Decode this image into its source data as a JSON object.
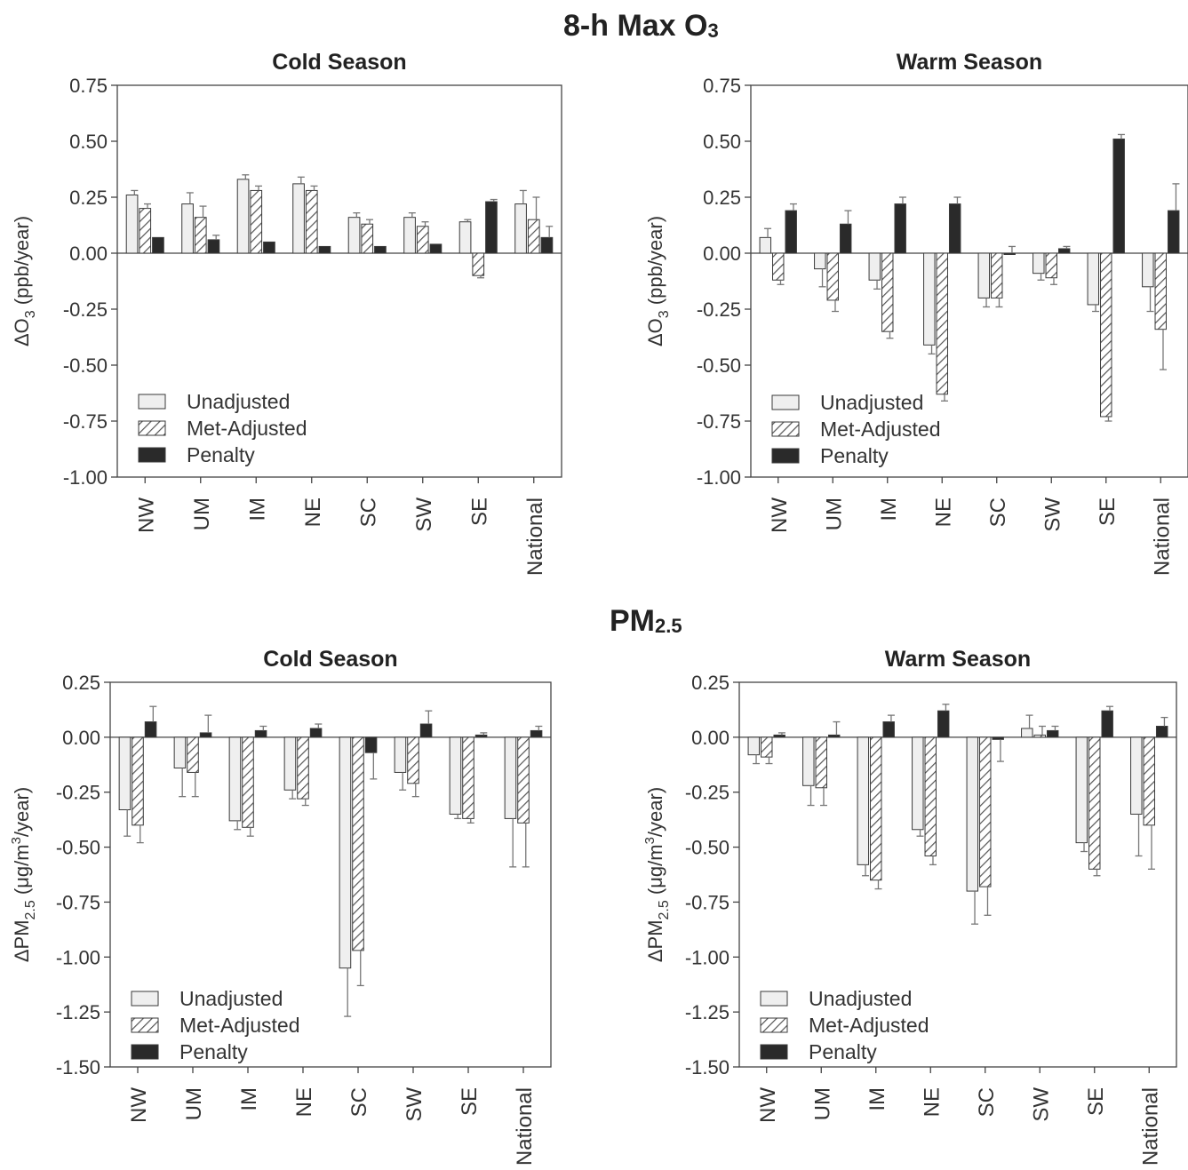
{
  "titles": {
    "o3": {
      "main": "8-h Max O",
      "sub": "3"
    },
    "pm": {
      "main": "PM",
      "sub": "2.5"
    }
  },
  "colors": {
    "unadjusted": "#efefef",
    "met_adjusted_hatch": "#555555",
    "penalty": "#2a2a2a",
    "axis": "#444444",
    "error_bar": "#777777"
  },
  "legend": [
    "Unadjusted",
    "Met-Adjusted",
    "Penalty"
  ],
  "chart_data": [
    {
      "type": "bar",
      "title": "Cold Season",
      "ylabel": "ΔO3 (ppb/year)",
      "ylim": [
        -1.0,
        0.75
      ],
      "yticks": [
        0.75,
        0.5,
        0.25,
        0.0,
        -0.25,
        -0.5,
        -0.75,
        -1.0
      ],
      "categories": [
        "NW",
        "UM",
        "IM",
        "NE",
        "SC",
        "SW",
        "SE",
        "National"
      ],
      "legend_position": "lower-left",
      "series": [
        {
          "name": "Unadjusted",
          "values": [
            0.26,
            0.22,
            0.33,
            0.31,
            0.16,
            0.16,
            0.14,
            0.22
          ],
          "errors": [
            0.02,
            0.05,
            0.02,
            0.03,
            0.02,
            0.02,
            0.01,
            0.06
          ]
        },
        {
          "name": "Met-Adjusted",
          "values": [
            0.2,
            0.16,
            0.28,
            0.28,
            0.13,
            0.12,
            -0.1,
            0.15
          ],
          "errors": [
            0.02,
            0.05,
            0.02,
            0.02,
            0.02,
            0.02,
            0.01,
            0.1
          ]
        },
        {
          "name": "Penalty",
          "values": [
            0.07,
            0.06,
            0.05,
            0.03,
            0.03,
            0.04,
            0.23,
            0.07
          ],
          "errors": [
            0.0,
            0.02,
            0.0,
            0.0,
            0.0,
            0.0,
            0.01,
            0.05
          ]
        }
      ]
    },
    {
      "type": "bar",
      "title": "Warm Season",
      "ylabel": "ΔO3 (ppb/year)",
      "ylim": [
        -1.0,
        0.75
      ],
      "yticks": [
        0.75,
        0.5,
        0.25,
        0.0,
        -0.25,
        -0.5,
        -0.75,
        -1.0
      ],
      "categories": [
        "NW",
        "UM",
        "IM",
        "NE",
        "SC",
        "SW",
        "SE",
        "National"
      ],
      "legend_position": "lower-left",
      "series": [
        {
          "name": "Unadjusted",
          "values": [
            0.07,
            -0.07,
            -0.12,
            -0.41,
            -0.2,
            -0.09,
            -0.23,
            -0.15
          ],
          "errors": [
            0.04,
            0.08,
            0.04,
            0.04,
            0.04,
            0.03,
            0.03,
            0.11
          ]
        },
        {
          "name": "Met-Adjusted",
          "values": [
            -0.12,
            -0.21,
            -0.35,
            -0.63,
            -0.2,
            -0.11,
            -0.73,
            -0.34
          ],
          "errors": [
            0.02,
            0.05,
            0.03,
            0.03,
            0.04,
            0.03,
            0.02,
            0.18
          ]
        },
        {
          "name": "Penalty",
          "values": [
            0.19,
            0.13,
            0.22,
            0.22,
            0.0,
            0.02,
            0.51,
            0.19
          ],
          "errors": [
            0.03,
            0.06,
            0.03,
            0.03,
            0.03,
            0.01,
            0.02,
            0.12
          ]
        }
      ]
    },
    {
      "type": "bar",
      "title": "Cold Season",
      "ylabel": "ΔPM2.5 (μg/m3/year)",
      "ylim": [
        -1.5,
        0.25
      ],
      "yticks": [
        0.25,
        0.0,
        -0.25,
        -0.5,
        -0.75,
        -1.0,
        -1.25,
        -1.5
      ],
      "categories": [
        "NW",
        "UM",
        "IM",
        "NE",
        "SC",
        "SW",
        "SE",
        "National"
      ],
      "legend_position": "lower-left",
      "series": [
        {
          "name": "Unadjusted",
          "values": [
            -0.33,
            -0.14,
            -0.38,
            -0.24,
            -1.05,
            -0.16,
            -0.35,
            -0.37
          ],
          "errors": [
            0.12,
            0.13,
            0.04,
            0.04,
            0.22,
            0.08,
            0.02,
            0.22
          ]
        },
        {
          "name": "Met-Adjusted",
          "values": [
            -0.4,
            -0.16,
            -0.41,
            -0.28,
            -0.97,
            -0.21,
            -0.37,
            -0.39
          ],
          "errors": [
            0.08,
            0.11,
            0.04,
            0.03,
            0.16,
            0.06,
            0.02,
            0.2
          ]
        },
        {
          "name": "Penalty",
          "values": [
            0.07,
            0.02,
            0.03,
            0.04,
            -0.07,
            0.06,
            0.01,
            0.03
          ],
          "errors": [
            0.07,
            0.08,
            0.02,
            0.02,
            0.12,
            0.06,
            0.01,
            0.02
          ]
        }
      ]
    },
    {
      "type": "bar",
      "title": "Warm Season",
      "ylabel": "ΔPM2.5 (μg/m3/year)",
      "ylim": [
        -1.5,
        0.25
      ],
      "yticks": [
        0.25,
        0.0,
        -0.25,
        -0.5,
        -0.75,
        -1.0,
        -1.25,
        -1.5
      ],
      "categories": [
        "NW",
        "UM",
        "IM",
        "NE",
        "SC",
        "SW",
        "SE",
        "National"
      ],
      "legend_position": "lower-left",
      "series": [
        {
          "name": "Unadjusted",
          "values": [
            -0.08,
            -0.22,
            -0.58,
            -0.42,
            -0.7,
            0.04,
            -0.48,
            -0.35
          ],
          "errors": [
            0.04,
            0.09,
            0.05,
            0.03,
            0.15,
            0.06,
            0.04,
            0.19
          ]
        },
        {
          "name": "Met-Adjusted",
          "values": [
            -0.09,
            -0.23,
            -0.65,
            -0.54,
            -0.68,
            0.01,
            -0.6,
            -0.4
          ],
          "errors": [
            0.03,
            0.08,
            0.04,
            0.04,
            0.13,
            0.04,
            0.03,
            0.2
          ]
        },
        {
          "name": "Penalty",
          "values": [
            0.01,
            0.01,
            0.07,
            0.12,
            -0.01,
            0.03,
            0.12,
            0.05
          ],
          "errors": [
            0.01,
            0.06,
            0.03,
            0.03,
            0.1,
            0.02,
            0.02,
            0.04
          ]
        }
      ]
    }
  ]
}
